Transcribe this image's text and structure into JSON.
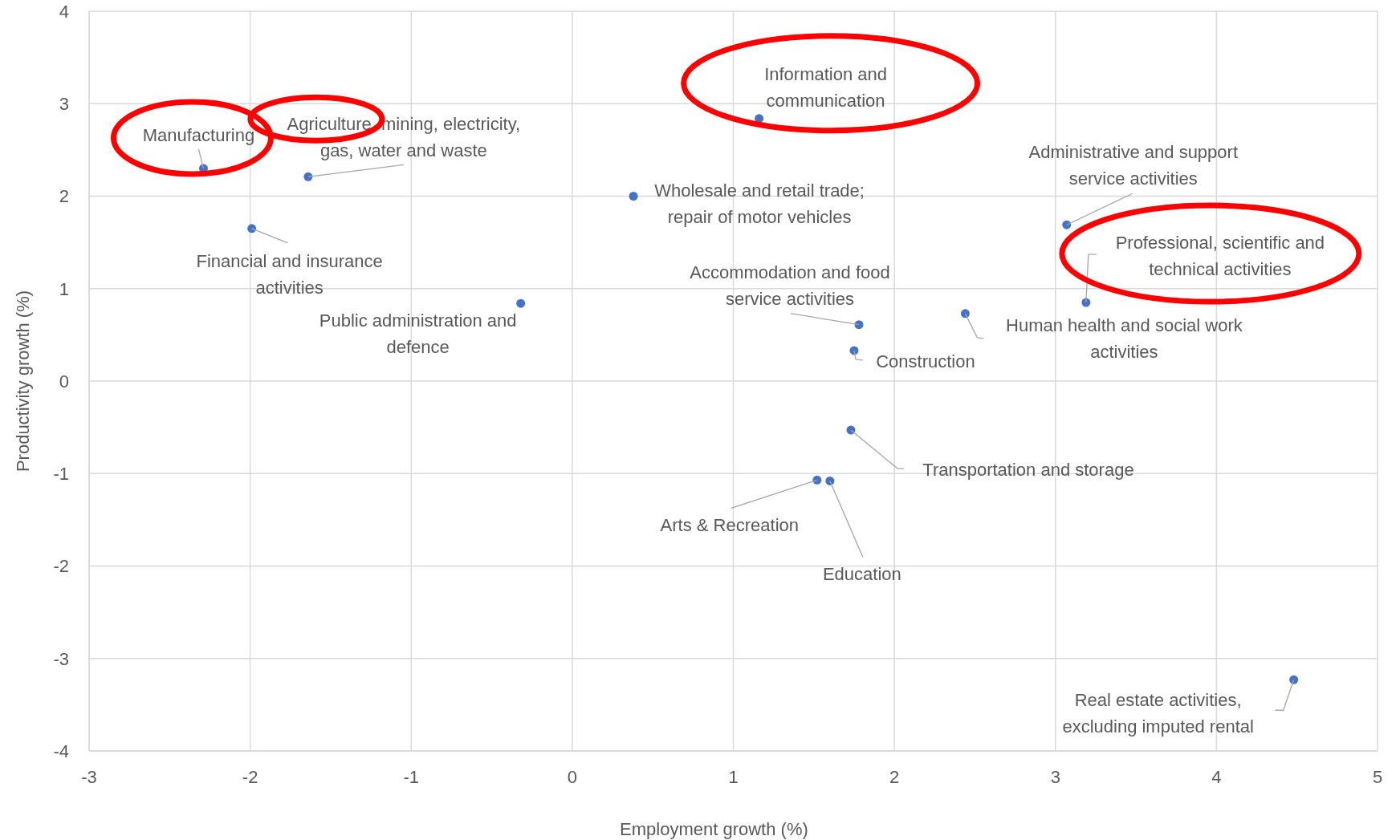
{
  "chart_data": {
    "type": "scatter",
    "xlabel": "Employment growth (%)",
    "ylabel": "Productivity growth (%)",
    "x": [
      -2.29,
      -1.64,
      -1.99,
      -0.32,
      0.38,
      1.16,
      1.78,
      1.75,
      1.73,
      1.52,
      1.6,
      2.44,
      3.07,
      3.19,
      4.48
    ],
    "values": [
      2.3,
      2.21,
      1.65,
      0.84,
      2.0,
      2.84,
      0.61,
      0.33,
      -0.53,
      -1.07,
      -1.08,
      0.73,
      1.69,
      0.85,
      -3.23
    ],
    "color": "#4472c4",
    "marker": "circle",
    "xlim": [
      -3,
      5
    ],
    "xticks": [
      -3,
      -2,
      -1,
      0,
      1,
      2,
      3,
      4,
      5
    ],
    "ylim": [
      -4,
      4
    ],
    "yticks": [
      -4,
      -3,
      -2,
      -1,
      0,
      1,
      2,
      3,
      4
    ],
    "grid": true,
    "annotations": [
      {
        "text": "Manufacturing",
        "x": -2.29,
        "y": 2.3
      },
      {
        "text": "Agriculture, mining, electricity, gas, water and waste",
        "x": -1.64,
        "y": 2.21
      },
      {
        "text": "Financial and insurance activities",
        "x": -1.99,
        "y": 1.65
      },
      {
        "text": "Public administration and defence",
        "x": -0.32,
        "y": 0.84
      },
      {
        "text": "Wholesale and retail trade; repair of motor vehicles",
        "x": 0.38,
        "y": 2.0
      },
      {
        "text": "Information and communication",
        "x": 1.16,
        "y": 2.84
      },
      {
        "text": "Accommodation and food service activities",
        "x": 1.78,
        "y": 0.61
      },
      {
        "text": "Construction",
        "x": 1.75,
        "y": 0.33
      },
      {
        "text": "Transportation and storage",
        "x": 1.73,
        "y": -0.53
      },
      {
        "text": "Arts & Recreation",
        "x": 1.52,
        "y": -1.07
      },
      {
        "text": "Education",
        "x": 1.6,
        "y": -1.08
      },
      {
        "text": "Human health and social work activities",
        "x": 2.44,
        "y": 0.73
      },
      {
        "text": "Administrative and support service activities",
        "x": 3.07,
        "y": 1.69
      },
      {
        "text": "Professional, scientific and technical activities",
        "x": 3.19,
        "y": 0.85
      },
      {
        "text": "Real estate activities, excluding imputed rental",
        "x": 4.48,
        "y": -3.23
      }
    ]
  }
}
